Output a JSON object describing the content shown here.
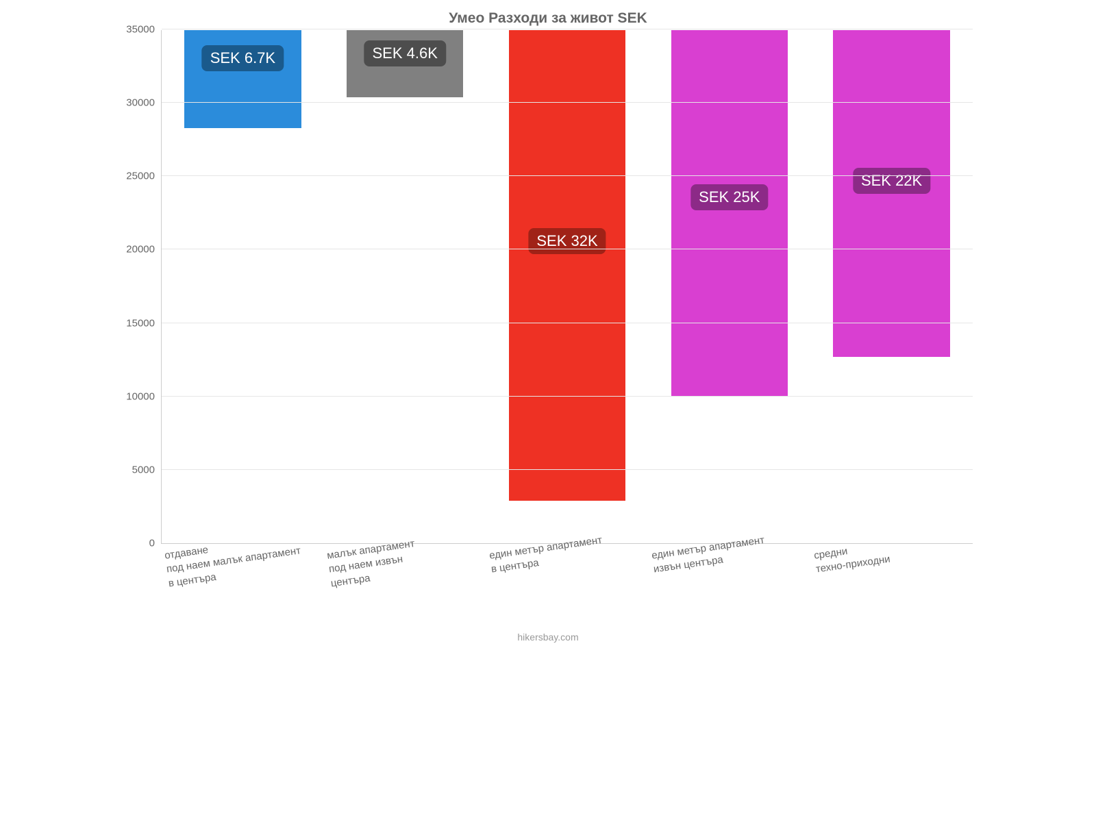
{
  "chart": {
    "type": "bar",
    "title": "Умео Разходи за живот SEK",
    "title_fontsize": 21,
    "title_color": "#666666",
    "background_color": "#ffffff",
    "grid_color": "#e6e6e6",
    "axis_color": "#cccccc",
    "tick_label_color": "#666666",
    "tick_label_fontsize": 15,
    "ylim": [
      0,
      35000
    ],
    "ytick_step": 5000,
    "yticks": [
      0,
      5000,
      10000,
      15000,
      20000,
      25000,
      30000,
      35000
    ],
    "bar_width_pct": 72,
    "categories": [
      "отдаване\nпод наем малък апартамент\nв центъра",
      "малък апартамент\nпод наем извън\nцентъра",
      "един метър апартамент\nв центъра",
      "един метър апартамент\nизвън центъра",
      "средни\nтехно-приходни"
    ],
    "xlabel_fontsize": 15,
    "xlabel_rotation_deg": -8,
    "values": [
      6700,
      4600,
      32100,
      25000,
      22300
    ],
    "bar_colors": [
      "#2b8cdb",
      "#808080",
      "#ee3124",
      "#d93fd1",
      "#d93fd1"
    ],
    "bar_labels": [
      "SEK 6.7K",
      "SEK 4.6K",
      "SEK 32K",
      "SEK 25K",
      "SEK 22K"
    ],
    "bar_label_bg": [
      "#1a5a8c",
      "#4d4d4d",
      "#a02217",
      "#8c2a87",
      "#8c2a87"
    ],
    "bar_label_fontsize": 22,
    "bar_label_color": "#ffffff",
    "attribution": "hikersbay.com",
    "attribution_fontsize": 14,
    "attribution_color": "#999999"
  }
}
